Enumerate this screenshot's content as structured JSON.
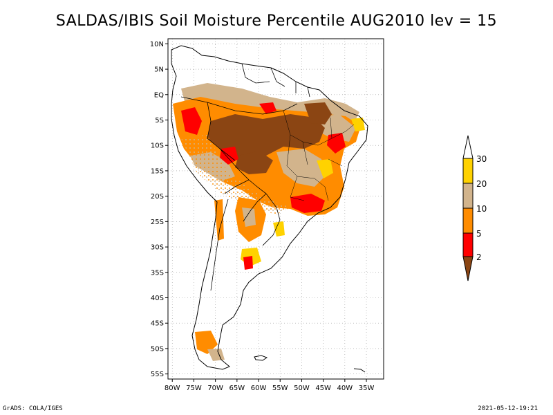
{
  "title": "SALDAS/IBIS Soil Moisture Percentile AUG2010 lev = 15",
  "footer": {
    "left": "GrADS: COLA/IGES",
    "right": "2021-05-12-19:21"
  },
  "map": {
    "lat_labels": [
      "10N",
      "5N",
      "EQ",
      "5S",
      "10S",
      "15S",
      "20S",
      "25S",
      "30S",
      "35S",
      "40S",
      "45S",
      "50S",
      "55S"
    ],
    "lat_values": [
      10,
      5,
      0,
      -5,
      -10,
      -15,
      -20,
      -25,
      -30,
      -35,
      -40,
      -45,
      -50,
      -55
    ],
    "lon_labels": [
      "80W",
      "75W",
      "70W",
      "65W",
      "60W",
      "55W",
      "50W",
      "45W",
      "40W",
      "35W"
    ],
    "lon_values": [
      -80,
      -75,
      -70,
      -65,
      -60,
      -55,
      -50,
      -45,
      -40,
      -35
    ],
    "lon_range": [
      -81,
      -31
    ],
    "lat_range": [
      -56,
      11
    ]
  },
  "legend": {
    "labels": [
      "30",
      "20",
      "10",
      "5",
      "2"
    ],
    "colors": [
      "#ffffff",
      "#ffd200",
      "#d2b48c",
      "#ff8c00",
      "#ff0000",
      "#8b4513"
    ]
  },
  "colors": {
    "brown": "#8b4513",
    "red": "#ff0000",
    "orange": "#ff8c00",
    "tan": "#d2b48c",
    "yellow": "#ffd200"
  }
}
